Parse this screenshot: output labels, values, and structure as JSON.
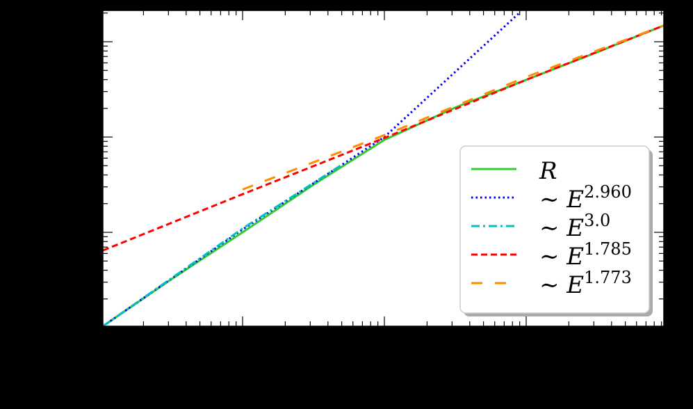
{
  "chart_data": {
    "type": "line",
    "title": "",
    "xlabel": "",
    "ylabel": "",
    "xscale": "log",
    "yscale": "log",
    "note": "Axis tick labels are rendered black-on-black and are not legible; coordinates are given in decades relative to the visible major ticks (x: 0 at 2nd major tick; y: 0 at lowest major tick).",
    "x_major_ticks_decades": [
      -1,
      0,
      1,
      2
    ],
    "y_major_ticks_decades": [
      0,
      1,
      2
    ],
    "xlim_decades": [
      -0.985,
      2.97
    ],
    "ylim_decades": [
      -0.985,
      2.3
    ],
    "grid": false,
    "legend_position": "lower right",
    "series": [
      {
        "name": "R",
        "label_base": "R",
        "label_exp": "",
        "color": "#33cc33",
        "style": "solid",
        "x": [
          -0.985,
          -0.5,
          0,
          0.5,
          1,
          1.5,
          2,
          2.5,
          2.97
        ],
        "y": [
          -0.985,
          -0.49,
          0.0,
          0.5,
          0.97,
          1.31,
          1.6,
          1.89,
          2.17
        ]
      },
      {
        "name": "~E^2.960",
        "label_base": "E",
        "label_exp": "2.960",
        "color": "#0000ee",
        "style": "dotted",
        "x": [
          -0.985,
          0,
          1,
          1.95
        ],
        "y": [
          -0.985,
          0.03,
          1.0,
          2.3
        ]
      },
      {
        "name": "~E^3.0",
        "label_base": "E",
        "label_exp": "3.0",
        "color": "#00c0c0",
        "style": "dashdot",
        "x": [
          -0.985,
          0,
          0.69
        ],
        "y": [
          -0.985,
          0.04,
          0.7
        ]
      },
      {
        "name": "~E^1.785",
        "label_base": "E",
        "label_exp": "1.785",
        "color": "#ff0000",
        "style": "dashed",
        "x": [
          -0.985,
          0,
          1,
          2,
          2.97
        ],
        "y": [
          -0.19,
          0.4,
          0.99,
          1.6,
          2.17
        ]
      },
      {
        "name": "~E^1.773",
        "label_base": "E",
        "label_exp": "1.773",
        "color": "#ff8c00",
        "style": "longdash",
        "x": [
          0,
          1,
          2,
          2.97
        ],
        "y": [
          0.45,
          1.02,
          1.63,
          2.17
        ]
      }
    ]
  },
  "legend": {
    "entries": [
      {
        "base": "R",
        "tilde": "",
        "exp": ""
      },
      {
        "base": "E",
        "tilde": "∼",
        "exp": "2.960"
      },
      {
        "base": "E",
        "tilde": "∼",
        "exp": "3.0"
      },
      {
        "base": "E",
        "tilde": "∼",
        "exp": "1.785"
      },
      {
        "base": "E",
        "tilde": "∼",
        "exp": "1.773"
      }
    ]
  }
}
